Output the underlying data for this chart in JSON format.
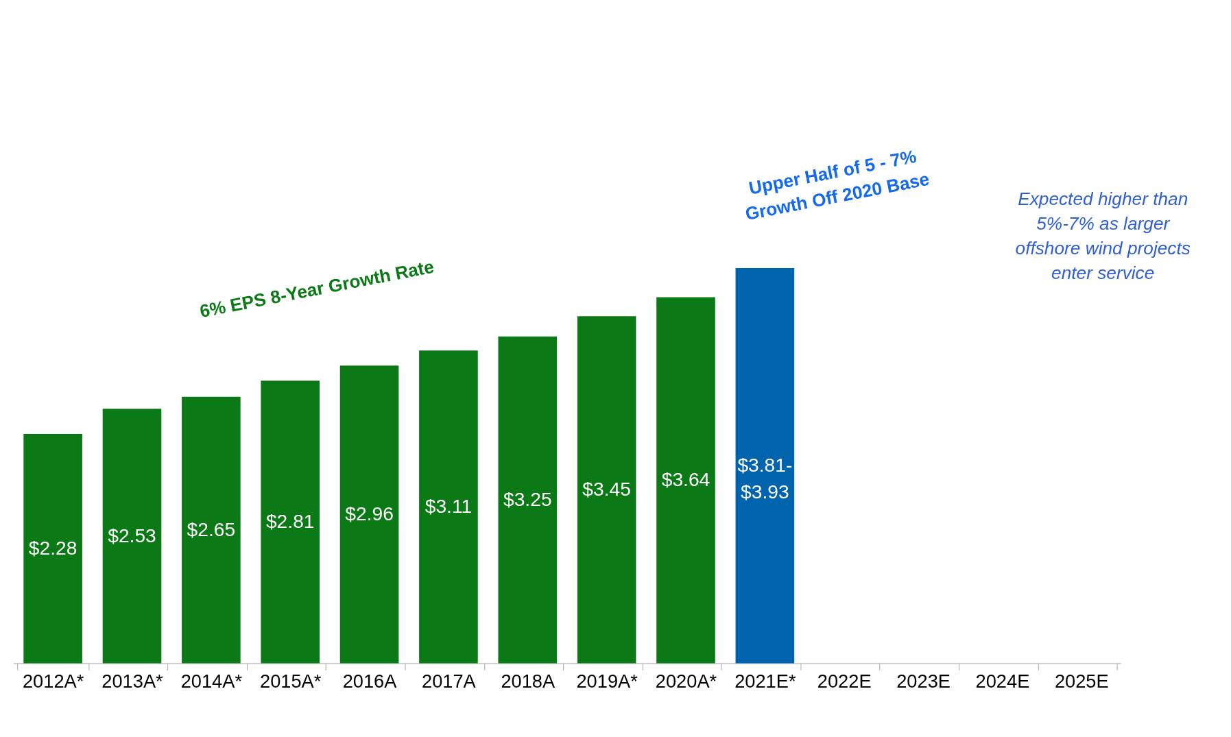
{
  "chart_data": {
    "type": "bar",
    "categories": [
      "2012A*",
      "2013A*",
      "2014A*",
      "2015A*",
      "2016A",
      "2017A",
      "2018A",
      "2019A*",
      "2020A*",
      "2021E*",
      "2022E",
      "2023E",
      "2024E",
      "2025E"
    ],
    "values": [
      2.28,
      2.53,
      2.65,
      2.81,
      2.96,
      3.11,
      3.25,
      3.45,
      3.64,
      3.93,
      null,
      null,
      null,
      null
    ],
    "value_labels": [
      "$2.28",
      "$2.53",
      "$2.65",
      "$2.81",
      "$2.96",
      "$3.11",
      "$3.25",
      "$3.45",
      "$3.64",
      "$3.81-\n$3.93",
      null,
      null,
      null,
      null
    ],
    "colors": [
      "#0b7a16",
      "#0b7a16",
      "#0b7a16",
      "#0b7a16",
      "#0b7a16",
      "#0b7a16",
      "#0b7a16",
      "#0b7a16",
      "#0b7a16",
      "#0063ad",
      null,
      null,
      null,
      null
    ],
    "tick_labels": "x",
    "grid": false,
    "annotations": [
      "6% EPS 8-Year Growth Rate",
      "Upper Half of 5 - 7%\nGrowth Off 2020 Base",
      "Expected higher than\n5%-7% as larger\noffshore wind projects\nenter service"
    ]
  }
}
